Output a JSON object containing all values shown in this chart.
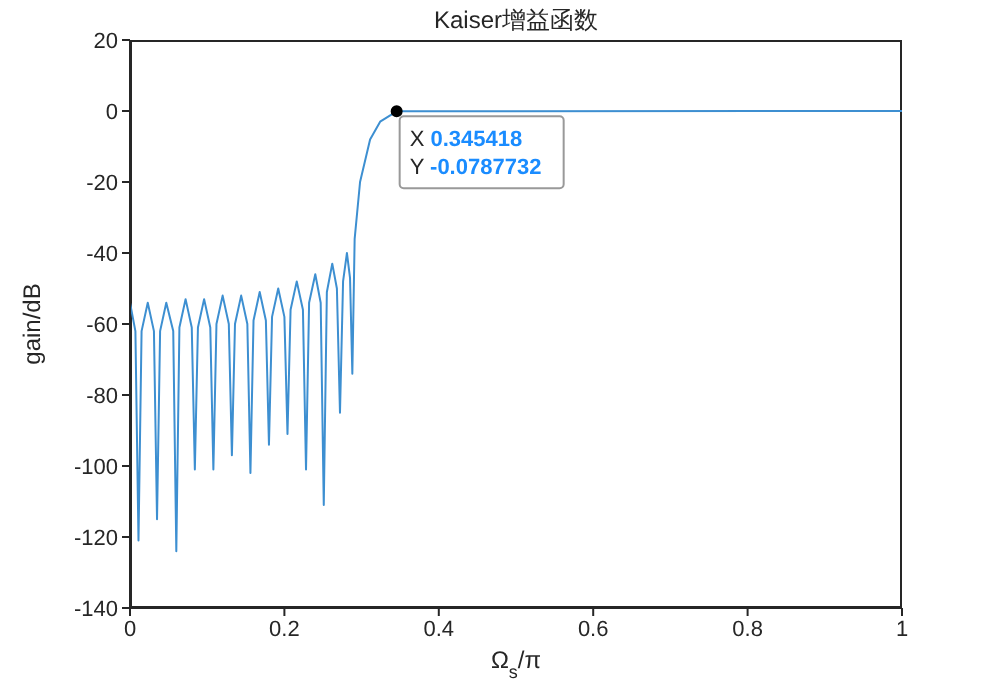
{
  "chart_data": {
    "type": "line",
    "title": "Kaiser增益函数",
    "xlabel": "Ω$_{s}$/π",
    "ylabel": "gain/dB",
    "xlim": [
      0,
      1
    ],
    "xticks": [
      0,
      0.2,
      0.4,
      0.6,
      0.8,
      1
    ],
    "ylim": [
      -140,
      20
    ],
    "yticks": [
      -140,
      -120,
      -100,
      -80,
      -60,
      -40,
      -20,
      0,
      20
    ],
    "grid": false,
    "annotations": [
      {
        "text": "X 0.345418\nY -0.0787732",
        "x": 0.345418,
        "y": -0.0787732
      }
    ],
    "series": [
      {
        "color": "#3d8fd1",
        "x": [
          0,
          0.007,
          0.011,
          0.015,
          0.023,
          0.031,
          0.035,
          0.039,
          0.047,
          0.056,
          0.06,
          0.064,
          0.072,
          0.08,
          0.084,
          0.088,
          0.096,
          0.104,
          0.108,
          0.112,
          0.12,
          0.128,
          0.132,
          0.136,
          0.144,
          0.152,
          0.156,
          0.16,
          0.168,
          0.176,
          0.18,
          0.184,
          0.192,
          0.2,
          0.204,
          0.208,
          0.216,
          0.224,
          0.228,
          0.232,
          0.24,
          0.247,
          0.251,
          0.255,
          0.262,
          0.268,
          0.272,
          0.276,
          0.281,
          0.285,
          0.288,
          0.291,
          0.298,
          0.311,
          0.324,
          0.345418,
          1
        ],
        "values": [
          -54,
          -62,
          -121,
          -62,
          -54,
          -62,
          -115,
          -62,
          -54,
          -62,
          -124,
          -61,
          -53,
          -61,
          -101,
          -61,
          -53,
          -61,
          -101,
          -60,
          -52,
          -60,
          -97,
          -60,
          -52,
          -60,
          -102,
          -59,
          -51,
          -59,
          -94,
          -58,
          -50,
          -58,
          -91,
          -56,
          -48,
          -56,
          -101,
          -54,
          -46,
          -54,
          -111,
          -51,
          -43,
          -50,
          -85,
          -48,
          -40,
          -47,
          -74,
          -36,
          -20,
          -8,
          -3,
          -0.0787732,
          0
        ]
      }
    ]
  }
}
